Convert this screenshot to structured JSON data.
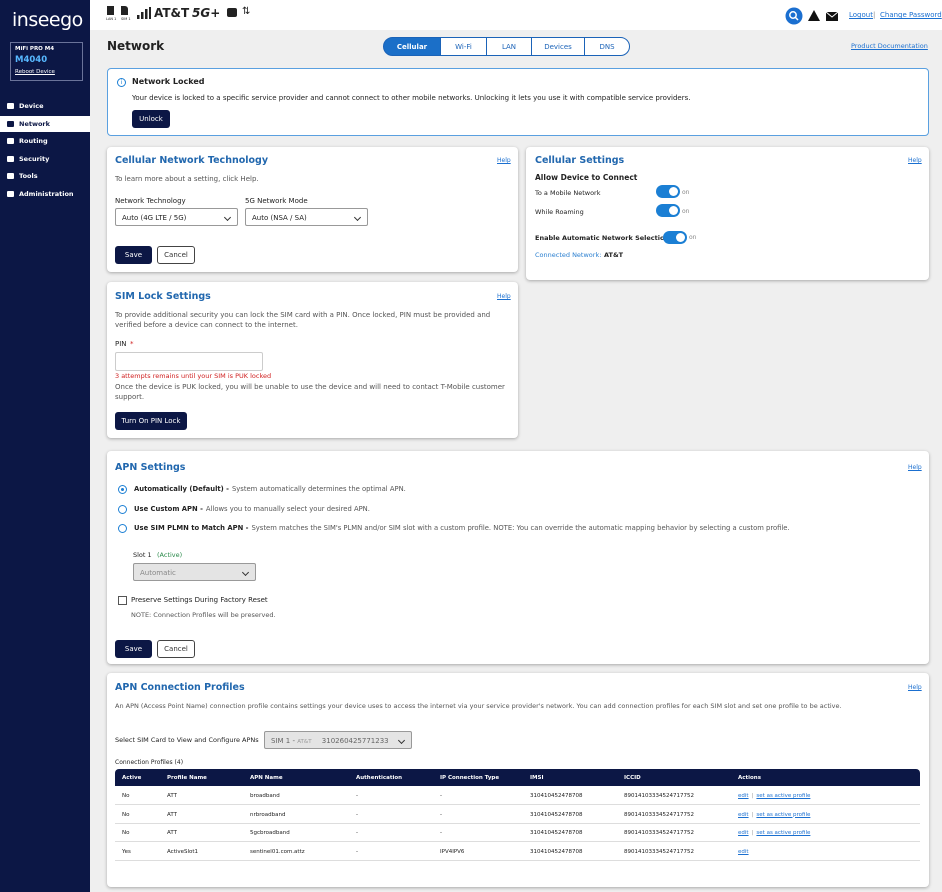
{
  "sidebar": {
    "logo": "inseego",
    "device_model": "MiFi PRO M4",
    "device_name": "M4040",
    "reboot": "Reboot Device",
    "nav": [
      "Device",
      "Network",
      "Routing",
      "Security",
      "Tools",
      "Administration"
    ]
  },
  "topbar": {
    "sim_labels": [
      "LAN 1",
      "SIM 1"
    ],
    "carrier": "AT&T",
    "network": "5G+",
    "logout": "Logout",
    "separator": "|",
    "change_password": "Change Password"
  },
  "page": {
    "title": "Network",
    "tabs": [
      "Cellular",
      "Wi-Fi",
      "LAN",
      "Devices",
      "DNS"
    ],
    "doc_link": "Product Documentation"
  },
  "alert": {
    "title": "Network Locked",
    "message": "Your device is locked to a specific service provider and cannot connect to other mobile networks. Unlocking it lets you use it with compatible service providers.",
    "button": "Unlock"
  },
  "cellular_tech": {
    "title": "Cellular Network Technology",
    "help": "Help",
    "hint": "To learn more about a setting, click Help.",
    "fields": [
      {
        "label": "Network Technology",
        "value": "Auto (4G LTE / 5G)"
      },
      {
        "label": "5G Network Mode",
        "value": "Auto (NSA / SA)"
      }
    ],
    "save": "Save",
    "cancel": "Cancel"
  },
  "cellular_settings": {
    "title": "Cellular Settings",
    "help": "Help",
    "subtitle": "Allow Device to Connect",
    "toggles": [
      "To a Mobile Network",
      "While Roaming"
    ],
    "toggle_state": "on",
    "auto_selection": "Enable Automatic Network Selection",
    "connected_label": "Connected Network:",
    "connected_value": "AT&T"
  },
  "sim_lock": {
    "title": "SIM Lock Settings",
    "help": "Help",
    "description": "To provide additional security you can lock the SIM card with a PIN. Once locked, PIN must be provided and verified before a device can connect to the internet.",
    "pin_label": "PIN",
    "required": "*",
    "error": "3 attempts remains until your SIM is PUK locked",
    "info": "Once the device is PUK locked, you will be unable to use the device and will need to contact T-Mobile customer support.",
    "button": "Turn On PIN Lock"
  },
  "apn_settings": {
    "title": "APN Settings",
    "help": "Help",
    "options": [
      {
        "label": "Automatically (Default) -",
        "description": "System automatically determines the optimal APN."
      },
      {
        "label": "Use Custom APN -",
        "description": "Allows you to manually select your desired APN."
      },
      {
        "label": "Use SIM PLMN to Match APN -",
        "description": "System matches the SIM's PLMN and/or SIM slot with a custom profile. NOTE: You can override the automatic mapping behavior by selecting a custom profile."
      }
    ],
    "slot_label": "Slot 1",
    "slot_status": "(Active)",
    "slot_value": "Automatic",
    "preserve": "Preserve Settings During Factory Reset",
    "note": "NOTE: Connection Profiles will be preserved.",
    "save": "Save",
    "cancel": "Cancel"
  },
  "apn_profiles": {
    "title": "APN Connection Profiles",
    "help": "Help",
    "description": "An APN (Access Point Name) connection profile contains settings your device uses to access the internet via your service provider's network. You can add connection profiles for each SIM slot and set one profile to be active.",
    "select_label": "Select SIM Card to View and Configure APNs",
    "select_sim": "SIM 1 -",
    "select_carrier": "AT&T",
    "select_id": "310260425771233",
    "count_label": "Connection Profiles (4)",
    "table": {
      "headers": [
        "Active",
        "Profile Name",
        "APN Name",
        "Authentication",
        "IP Connection Type",
        "IMSI",
        "ICCID",
        "Actions"
      ],
      "separator": "|",
      "rows": [
        [
          "No",
          "ATT",
          "broadband",
          "-",
          "-",
          "310410452478708",
          "89014103334524717752",
          [
            "edit",
            "set as active profile"
          ]
        ],
        [
          "No",
          "ATT",
          "nrbroadband",
          "-",
          "-",
          "310410452478708",
          "89014103334524717752",
          [
            "edit",
            "set as active profile"
          ]
        ],
        [
          "No",
          "ATT",
          "5gcbroadband",
          "-",
          "-",
          "310410452478708",
          "89014103334524717752",
          [
            "edit",
            "set as active profile"
          ]
        ],
        [
          "Yes",
          "ActiveSlot1",
          "sentinel01.com.attz",
          "-",
          "IPV4IPV6",
          "310410452478708",
          "89014103334524717752",
          [
            "edit"
          ]
        ]
      ]
    }
  }
}
